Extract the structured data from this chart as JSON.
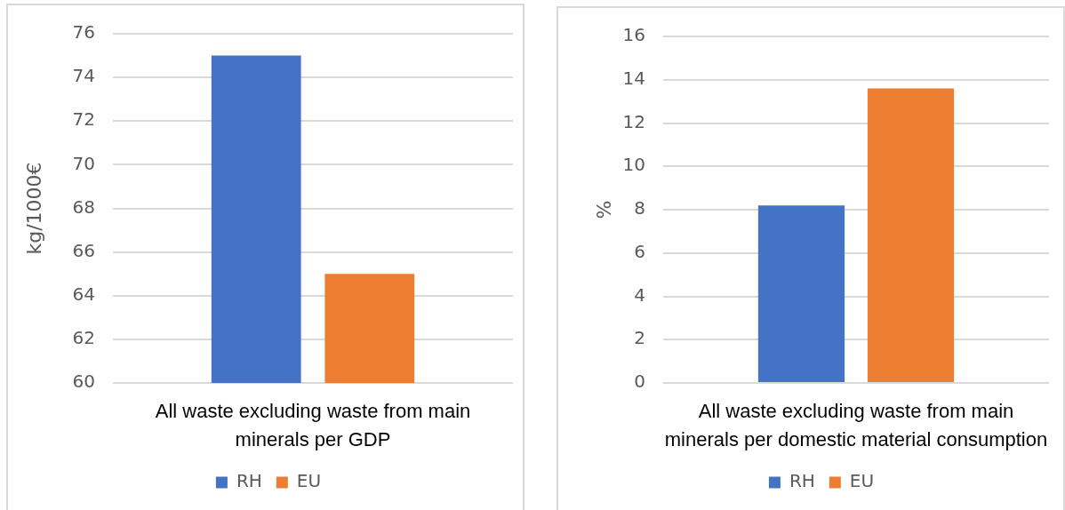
{
  "chart_data": [
    {
      "type": "bar",
      "categories": [
        "All waste excluding waste from main minerals per GDP"
      ],
      "series": [
        {
          "name": "RH",
          "color": "#4472c4",
          "values": [
            75
          ]
        },
        {
          "name": "EU",
          "color": "#ed7d31",
          "values": [
            65
          ]
        }
      ],
      "ylabel": "kg/1000€",
      "ylim": [
        60,
        76
      ],
      "yticks": [
        60,
        62,
        64,
        66,
        68,
        70,
        72,
        74,
        76
      ],
      "grid": "y",
      "legend": "bottom"
    },
    {
      "type": "bar",
      "categories": [
        "All waste excluding waste from main minerals per domestic material consumption"
      ],
      "series": [
        {
          "name": "RH",
          "color": "#4472c4",
          "values": [
            8.2
          ]
        },
        {
          "name": "EU",
          "color": "#ed7d31",
          "values": [
            13.6
          ]
        }
      ],
      "ylabel": "%",
      "ylim": [
        0,
        16
      ],
      "yticks": [
        0,
        2,
        4,
        6,
        8,
        10,
        12,
        14,
        16
      ],
      "grid": "y",
      "legend": "bottom"
    }
  ]
}
